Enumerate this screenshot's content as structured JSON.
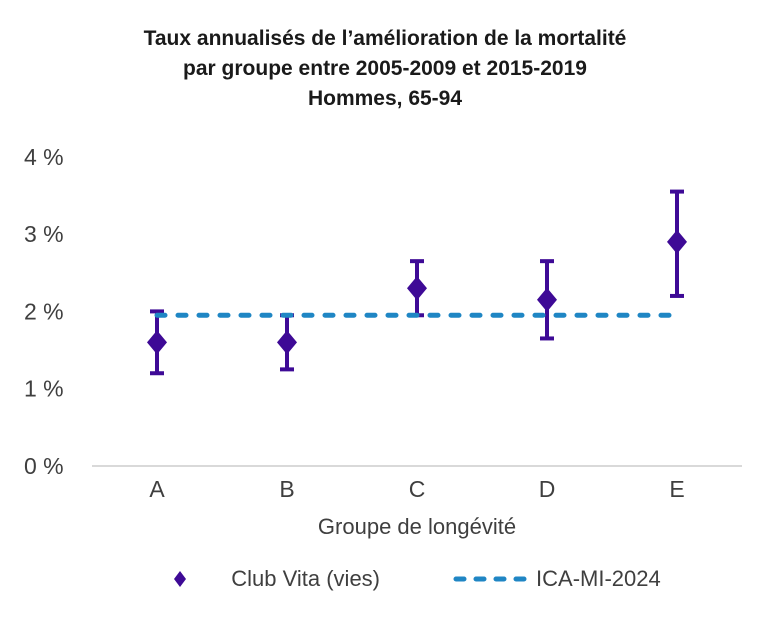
{
  "title": {
    "lines": [
      "Taux annualisés de l’amélioration de la mortalité",
      "par groupe entre 2005-2009 et 2015-2019",
      "Hommes, 65-94"
    ]
  },
  "chart_data": {
    "type": "scatter",
    "categories": [
      "A",
      "B",
      "C",
      "D",
      "E"
    ],
    "series": [
      {
        "name": "Club Vita (vies)",
        "marker": "diamond",
        "color": "#3E0A96",
        "values": [
          1.6,
          1.6,
          2.3,
          2.15,
          2.9
        ],
        "error_high": [
          2.0,
          1.95,
          2.65,
          2.65,
          3.55
        ],
        "error_low": [
          1.2,
          1.25,
          1.95,
          1.65,
          2.2
        ]
      },
      {
        "name": "ICA-MI-2024",
        "marker": "dashed-line",
        "color": "#1F86C4",
        "value": 1.95
      }
    ],
    "xlabel": "Groupe de longévité",
    "ylabel": "",
    "ylim": [
      0,
      4
    ],
    "yticks": [
      0,
      1,
      2,
      3,
      4
    ],
    "ytick_labels": [
      "0 %",
      "1 %",
      "2 %",
      "3 %",
      "4 %"
    ],
    "grid": false,
    "legend_position": "bottom"
  },
  "colors": {
    "axis_line": "#d9d9d9",
    "label_text": "#3f3f3f",
    "title_text": "#1a1a1a"
  }
}
